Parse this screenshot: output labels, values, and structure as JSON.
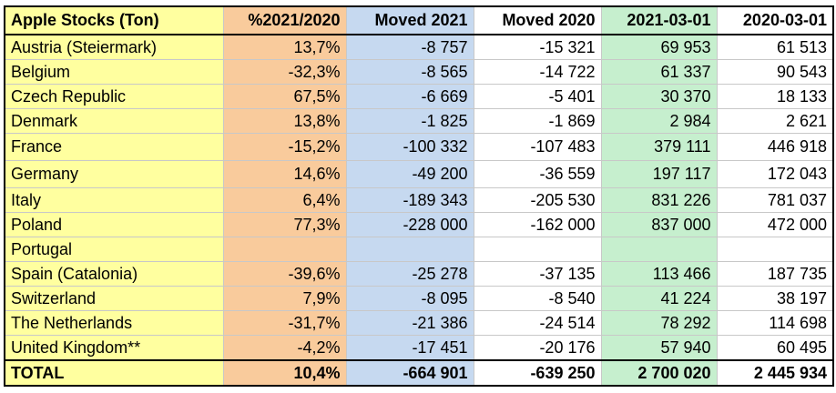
{
  "headers": [
    "Apple Stocks (Ton)",
    "%2021/2020",
    "Moved 2021",
    "Moved 2020",
    "2021-03-01",
    "2020-03-01"
  ],
  "rows": [
    [
      "Austria (Steiermark)",
      "13,7%",
      "-8 757",
      "-15 321",
      "69 953",
      "61 513"
    ],
    [
      "Belgium",
      "-32,3%",
      "-8 565",
      "-14 722",
      "61 337",
      "90 543"
    ],
    [
      "Czech Republic",
      "67,5%",
      "-6 669",
      "-5 401",
      "30 370",
      "18 133"
    ],
    [
      "Denmark",
      "13,8%",
      "-1 825",
      "-1 869",
      "2 984",
      "2 621"
    ],
    [
      "France",
      "-15,2%",
      "-100 332",
      "-107 483",
      "379 111",
      "446 918"
    ],
    [
      "Germany",
      "14,6%",
      "-49 200",
      "-36 559",
      "197 117",
      "172 043"
    ],
    [
      "Italy",
      "6,4%",
      "-189 343",
      "-205 530",
      "831 226",
      "781 037"
    ],
    [
      "Poland",
      "77,3%",
      "-228 000",
      "-162 000",
      "837 000",
      "472 000"
    ],
    [
      "Portugal",
      "",
      "",
      "",
      "",
      ""
    ],
    [
      "Spain (Catalonia)",
      "-39,6%",
      "-25 278",
      "-37 135",
      "113 466",
      "187 735"
    ],
    [
      "Switzerland",
      "7,9%",
      "-8 095",
      "-8 540",
      "41 224",
      "38 197"
    ],
    [
      "The Netherlands",
      "-31,7%",
      "-21 386",
      "-24 514",
      "78 292",
      "114 698"
    ],
    [
      "United Kingdom**",
      "-4,2%",
      "-17 451",
      "-20 176",
      "57 940",
      "60 495"
    ]
  ],
  "total": [
    "TOTAL",
    "10,4%",
    "-664 901",
    "-639 250",
    "2 700 020",
    "2 445 934"
  ]
}
